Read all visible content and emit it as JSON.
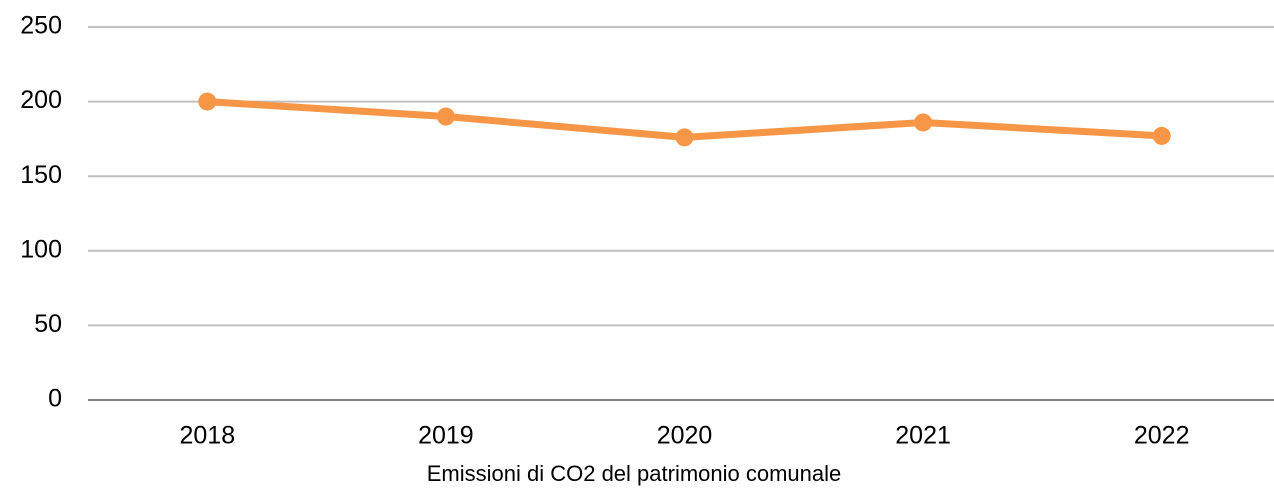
{
  "chart_data": {
    "type": "line",
    "categories": [
      "2018",
      "2019",
      "2020",
      "2021",
      "2022"
    ],
    "values": [
      200,
      190,
      176,
      186,
      177
    ],
    "color": "#f79646",
    "ylim": [
      0,
      250
    ],
    "yticks": [
      0,
      50,
      100,
      150,
      200,
      250
    ],
    "grid": true,
    "xlabel": "Emissioni di CO2 del patrimonio comunale"
  }
}
